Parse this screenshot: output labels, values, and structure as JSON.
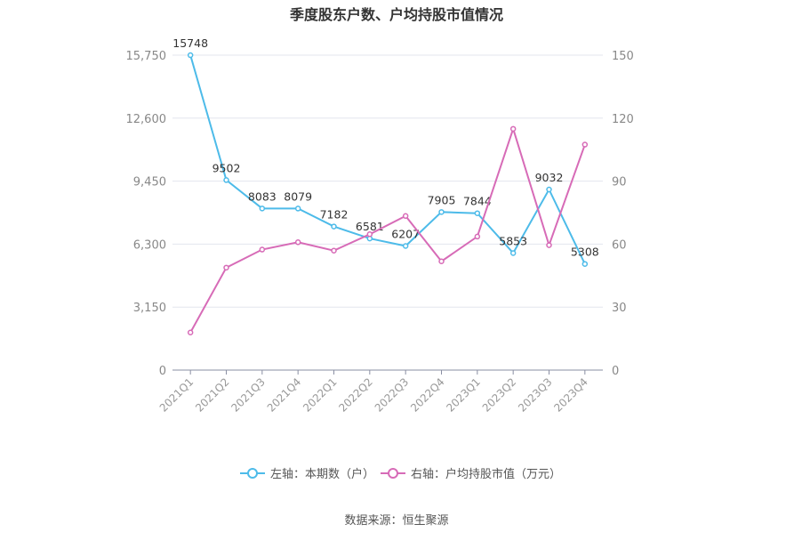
{
  "chart_data": {
    "type": "line",
    "title": "季度股东户数、户均持股市值情况",
    "source": "数据来源：恒生聚源",
    "categories": [
      "2021Q1",
      "2021Q2",
      "2021Q3",
      "2021Q4",
      "2022Q1",
      "2022Q2",
      "2022Q3",
      "2022Q4",
      "2023Q1",
      "2023Q2",
      "2023Q3",
      "2023Q4"
    ],
    "y_left": {
      "ylim": [
        0,
        15750
      ],
      "ticks": [
        "0",
        "3,150",
        "6,300",
        "9,450",
        "12,600",
        "15,750"
      ]
    },
    "y_right": {
      "ylim": [
        0,
        150
      ],
      "ticks": [
        "0",
        "30",
        "60",
        "90",
        "120",
        "150"
      ]
    },
    "series": [
      {
        "name": "左轴：本期数（户）",
        "axis": "left",
        "color": "#4dbbe9",
        "values": [
          15748,
          9502,
          8083,
          8079,
          7182,
          6581,
          6207,
          7905,
          7844,
          5853,
          9032,
          5308
        ],
        "labels": [
          "15748",
          "9502",
          "8083",
          "8079",
          "7182",
          "6581",
          "6207",
          "7905",
          "7844",
          "5853",
          "9032",
          "5308"
        ]
      },
      {
        "name": "右轴：户均持股市值（万元）",
        "axis": "right",
        "color": "#d76bb7",
        "values": [
          17.9,
          48.8,
          57.4,
          60.9,
          56.9,
          64.7,
          73.4,
          51.8,
          63.6,
          114.9,
          59.5,
          107.4
        ]
      }
    ],
    "grid": true,
    "legend_position": "bottom"
  }
}
